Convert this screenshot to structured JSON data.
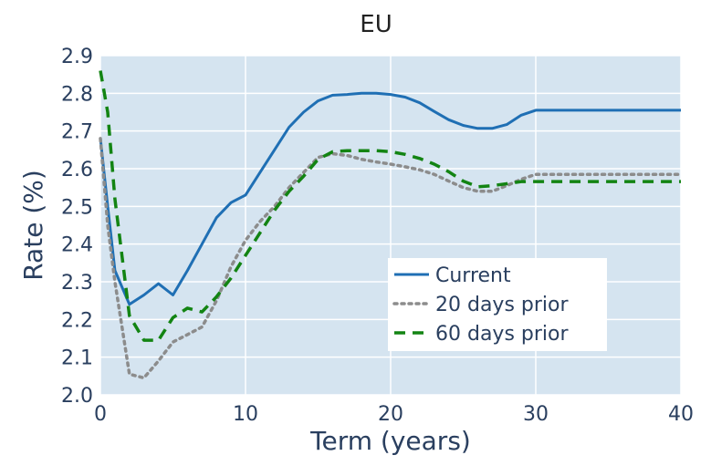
{
  "chart_data": {
    "type": "line",
    "title": "EU",
    "xlabel": "Term (years)",
    "ylabel": "Rate (%)",
    "xlim": [
      0,
      40
    ],
    "ylim": [
      2.0,
      2.9
    ],
    "x_ticks": [
      0,
      10,
      20,
      30,
      40
    ],
    "y_ticks": [
      2.0,
      2.1,
      2.2,
      2.3,
      2.4,
      2.5,
      2.6,
      2.7,
      2.8,
      2.9
    ],
    "x_tick_labels": [
      "0",
      "10",
      "20",
      "30",
      "40"
    ],
    "y_tick_labels": [
      "2.0",
      "2.1",
      "2.2",
      "2.3",
      "2.4",
      "2.5",
      "2.6",
      "2.7",
      "2.8",
      "2.9"
    ],
    "grid": true,
    "plot_background": "#d5e4f0",
    "legend_position": "bottom-right",
    "series": [
      {
        "name": "Current",
        "color": "#1f6fb4",
        "dash": "solid",
        "x": [
          0,
          0.5,
          1,
          2,
          3,
          4,
          5,
          6,
          7,
          8,
          9,
          10,
          11,
          12,
          13,
          14,
          15,
          16,
          17,
          18,
          19,
          20,
          21,
          22,
          23,
          24,
          25,
          26,
          27,
          28,
          29,
          30,
          35,
          40
        ],
        "y": [
          2.68,
          2.5,
          2.33,
          2.24,
          2.265,
          2.295,
          2.265,
          2.33,
          2.4,
          2.47,
          2.51,
          2.53,
          2.59,
          2.65,
          2.71,
          2.75,
          2.78,
          2.795,
          2.797,
          2.8,
          2.8,
          2.797,
          2.79,
          2.775,
          2.752,
          2.73,
          2.715,
          2.707,
          2.707,
          2.717,
          2.742,
          2.755,
          2.755,
          2.755
        ]
      },
      {
        "name": "20 days prior",
        "color": "#8c8c8c",
        "dash": "dot",
        "x": [
          0,
          0.5,
          1,
          2,
          3,
          4,
          5,
          6,
          7,
          8,
          9,
          10,
          11,
          12,
          13,
          14,
          15,
          16,
          17,
          18,
          19,
          20,
          21,
          22,
          23,
          24,
          25,
          26,
          27,
          28,
          29,
          30,
          35,
          40
        ],
        "y": [
          2.68,
          2.45,
          2.3,
          2.055,
          2.045,
          2.09,
          2.14,
          2.16,
          2.18,
          2.25,
          2.34,
          2.41,
          2.46,
          2.5,
          2.55,
          2.59,
          2.63,
          2.64,
          2.635,
          2.625,
          2.618,
          2.612,
          2.605,
          2.597,
          2.585,
          2.567,
          2.55,
          2.54,
          2.54,
          2.555,
          2.572,
          2.585,
          2.585,
          2.585
        ]
      },
      {
        "name": "60 days prior",
        "color": "#138413",
        "dash": "dash",
        "x": [
          0,
          0.5,
          1,
          2,
          3,
          4,
          5,
          6,
          7,
          8,
          9,
          10,
          11,
          12,
          13,
          14,
          15,
          16,
          17,
          18,
          19,
          20,
          21,
          22,
          23,
          24,
          25,
          26,
          27,
          28,
          29,
          30,
          35,
          40
        ],
        "y": [
          2.86,
          2.75,
          2.52,
          2.21,
          2.145,
          2.145,
          2.205,
          2.23,
          2.22,
          2.26,
          2.31,
          2.37,
          2.43,
          2.49,
          2.54,
          2.58,
          2.625,
          2.645,
          2.648,
          2.648,
          2.648,
          2.645,
          2.638,
          2.627,
          2.612,
          2.592,
          2.567,
          2.552,
          2.555,
          2.56,
          2.566,
          2.566,
          2.566,
          2.566
        ]
      }
    ]
  }
}
